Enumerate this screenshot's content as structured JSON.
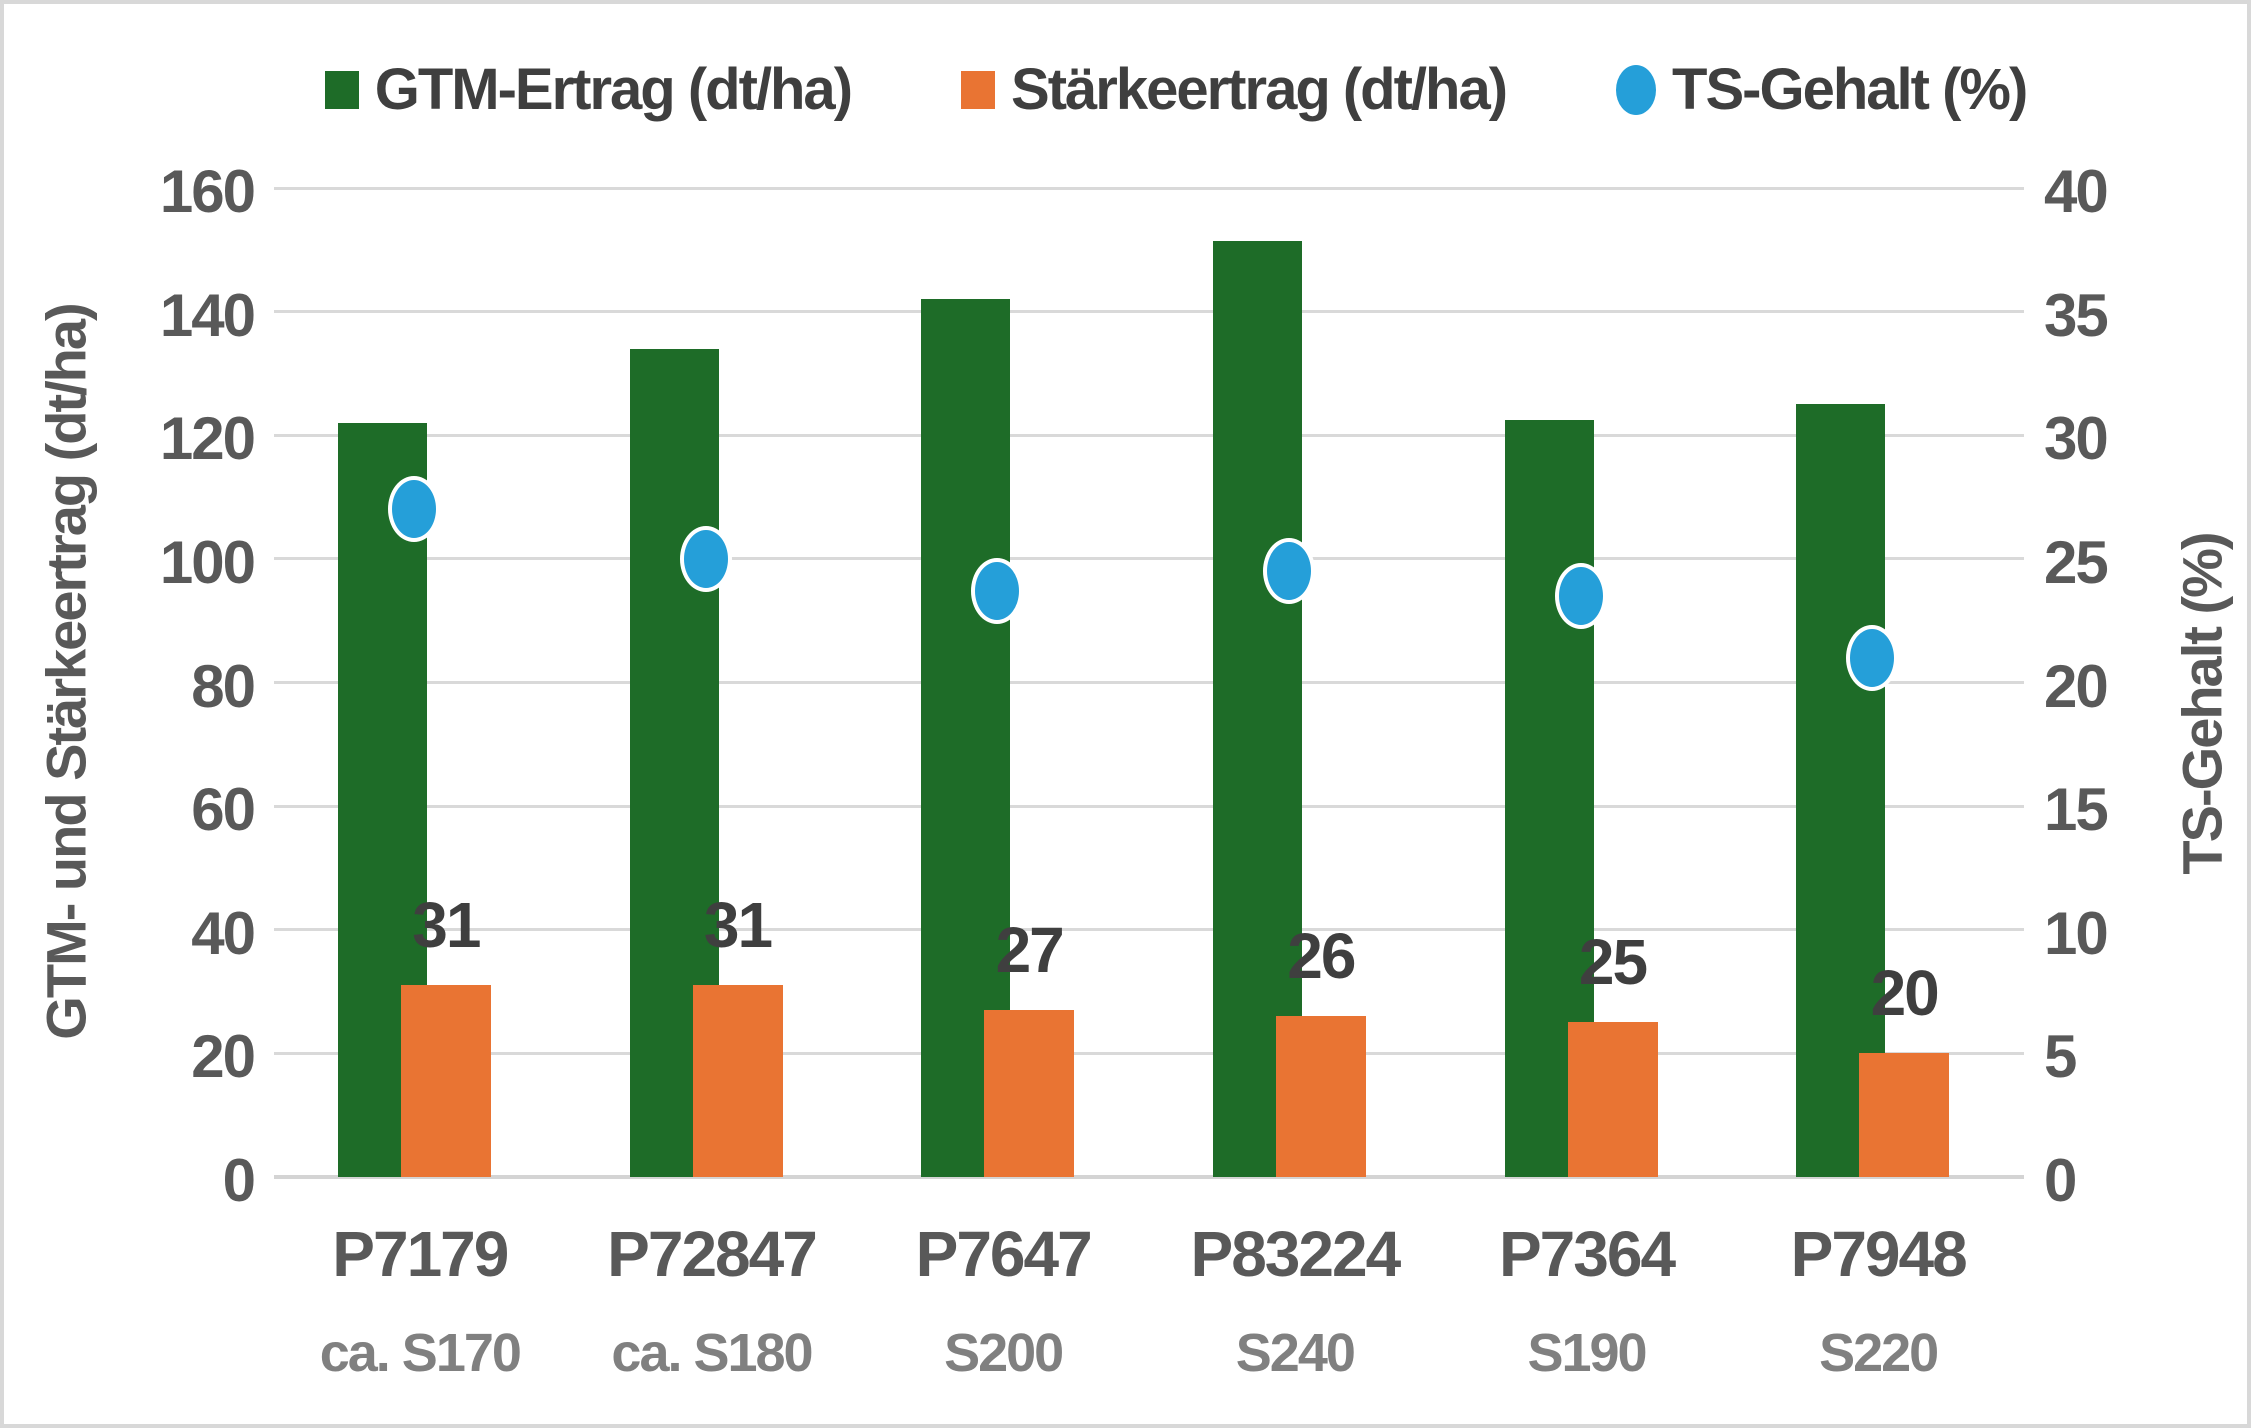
{
  "chart_data": {
    "type": "combo-bar-scatter",
    "categories": [
      "P7179",
      "P72847",
      "P7647",
      "P83224",
      "P7364",
      "P7948"
    ],
    "category_sublabels": [
      "ca. S170",
      "ca. S180",
      "S200",
      "S240",
      "S190",
      "S220"
    ],
    "series": [
      {
        "name": "GTM-Ertrag (dt/ha)",
        "type": "bar",
        "axis": "left",
        "color": "#1E6C28",
        "values": [
          122,
          134,
          142,
          151.5,
          122.5,
          125
        ]
      },
      {
        "name": "Stärkeertrag (dt/ha)",
        "type": "bar",
        "axis": "left",
        "color": "#E97433",
        "values": [
          31,
          31,
          27,
          26,
          25,
          20
        ],
        "data_labels": [
          "31",
          "31",
          "27",
          "26",
          "25",
          "20"
        ]
      },
      {
        "name": "TS-Gehalt (%)",
        "type": "scatter",
        "axis": "right",
        "color": "#259FD9",
        "values": [
          27,
          25,
          23.7,
          24.5,
          23.5,
          21
        ]
      }
    ],
    "left_axis": {
      "title": "GTM- und Stärkeertrag (dt/ha)",
      "min": 0,
      "max": 160,
      "step": 20,
      "ticks": [
        "0",
        "20",
        "40",
        "60",
        "80",
        "100",
        "120",
        "140",
        "160"
      ]
    },
    "right_axis": {
      "title": "TS-Gehalt (%)",
      "min": 0,
      "max": 40,
      "step": 5,
      "ticks": [
        "0",
        "5",
        "10",
        "15",
        "20",
        "25",
        "30",
        "35",
        "40"
      ]
    },
    "grid": true,
    "legend_position": "top",
    "colors": {
      "grid": "#D9D9D9",
      "axis_text": "#595959",
      "sublabel_text": "#808080",
      "data_label_text": "#3F3F3F",
      "background": "#FFFFFF",
      "border": "#D8D8D8"
    }
  }
}
